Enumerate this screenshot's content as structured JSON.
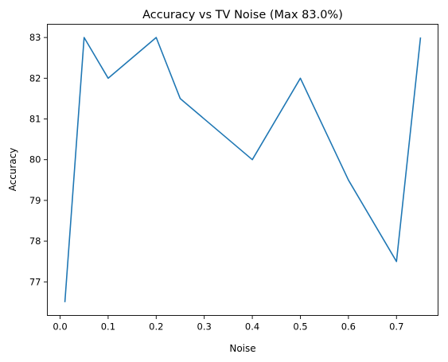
{
  "chart_data": {
    "type": "line",
    "title": "Accuracy vs TV Noise (Max 83.0%)",
    "xlabel": "Noise",
    "ylabel": "Accuracy",
    "xlim": [
      -0.0265,
      0.7865
    ],
    "ylim": [
      76.175,
      83.325
    ],
    "xticks": [
      0.0,
      0.1,
      0.2,
      0.3,
      0.4,
      0.5,
      0.6,
      0.7
    ],
    "xtick_labels": [
      "0.0",
      "0.1",
      "0.2",
      "0.3",
      "0.4",
      "0.5",
      "0.6",
      "0.7"
    ],
    "yticks": [
      77,
      78,
      79,
      80,
      81,
      82,
      83
    ],
    "ytick_labels": [
      "77",
      "78",
      "79",
      "80",
      "81",
      "82",
      "83"
    ],
    "grid": false,
    "series": [
      {
        "color": "#1f77b4",
        "x": [
          0.01,
          0.05,
          0.1,
          0.2,
          0.25,
          0.4,
          0.5,
          0.6,
          0.7,
          0.75
        ],
        "y": [
          76.5,
          83.0,
          82.0,
          83.0,
          81.5,
          80.0,
          82.0,
          79.5,
          77.5,
          83.0
        ]
      }
    ]
  }
}
